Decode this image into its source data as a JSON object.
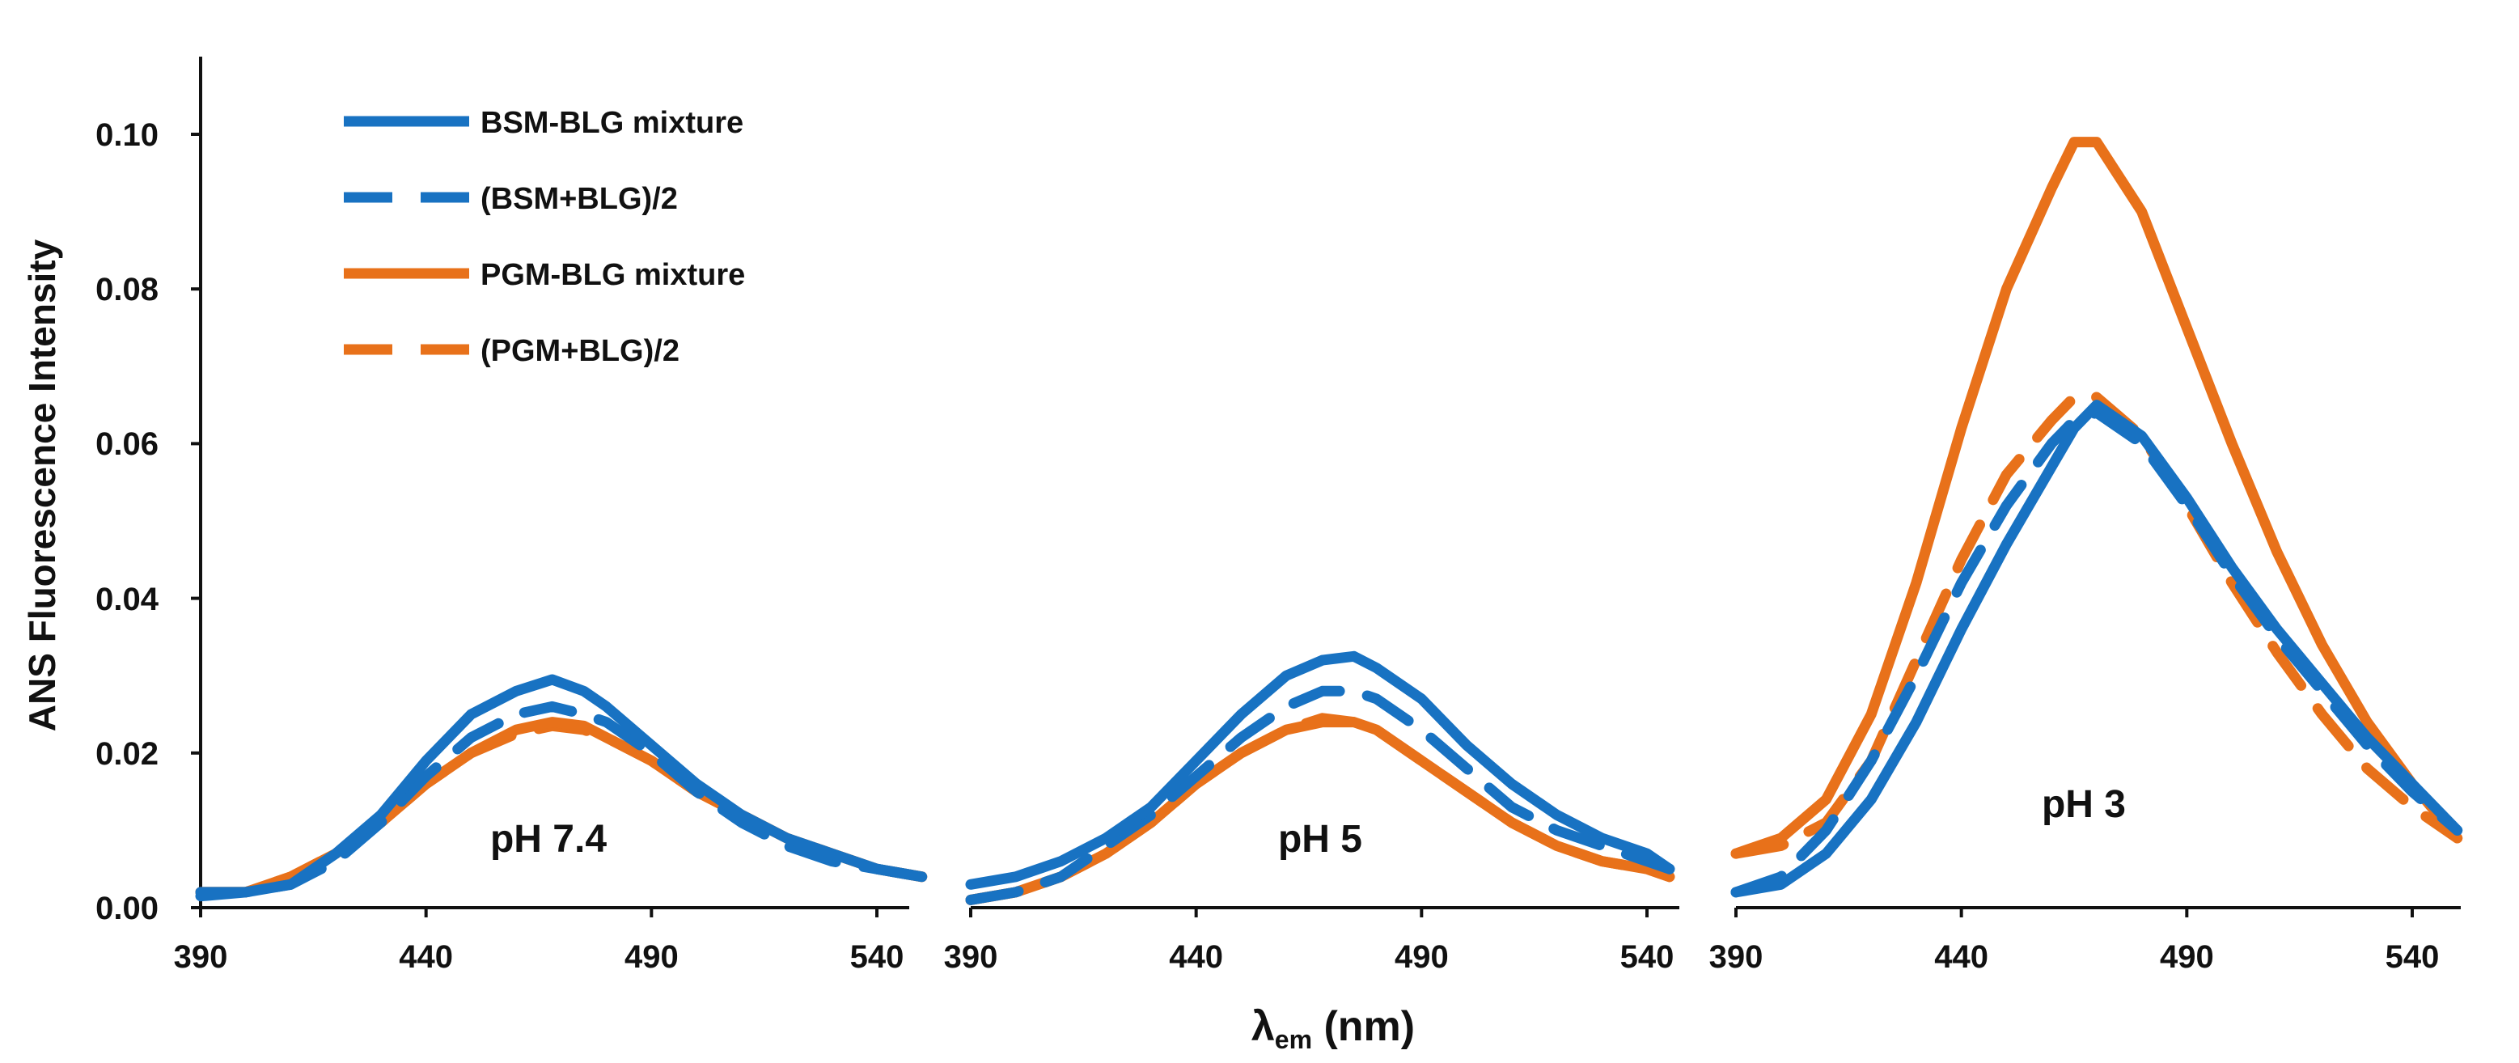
{
  "chart_data": {
    "type": "line",
    "ylabel": "ANS Fluorescence Intensity",
    "xlabel": {
      "main": "λ",
      "sub": "em",
      "unit": " (nm)"
    },
    "ylim": [
      0,
      0.11
    ],
    "yticks": [
      "0.00",
      "0.02",
      "0.04",
      "0.06",
      "0.08",
      "0.10"
    ],
    "ytick_values": [
      0,
      0.02,
      0.04,
      0.06,
      0.08,
      0.1
    ],
    "xlim": [
      390,
      550
    ],
    "xticks": [
      "390",
      "440",
      "490",
      "540"
    ],
    "xtick_values": [
      390,
      440,
      490,
      540
    ],
    "legend": [
      {
        "label": "BSM-BLG mixture",
        "color": "#1872C2",
        "dashed": false
      },
      {
        "label": "(BSM+BLG)/2",
        "color": "#1872C2",
        "dashed": true
      },
      {
        "label": "PGM-BLG mixture",
        "color": "#E8711A",
        "dashed": false
      },
      {
        "label": "(PGM+BLG)/2",
        "color": "#E8711A",
        "dashed": true
      }
    ],
    "panels": [
      {
        "label": "pH 7.4",
        "x": [
          390,
          400,
          410,
          420,
          430,
          440,
          450,
          460,
          468,
          475,
          480,
          490,
          500,
          510,
          520,
          530,
          540,
          550
        ],
        "series": [
          {
            "name": "BSM-BLG mixture",
            "values": [
              0.002,
              0.002,
              0.003,
              0.007,
              0.012,
              0.019,
              0.025,
              0.028,
              0.0295,
              0.028,
              0.026,
              0.021,
              0.016,
              0.012,
              0.009,
              0.007,
              0.005,
              0.004
            ]
          },
          {
            "name": "(BSM+BLG)/2",
            "values": [
              0.0015,
              0.002,
              0.003,
              0.006,
              0.011,
              0.017,
              0.022,
              0.025,
              0.026,
              0.025,
              0.024,
              0.02,
              0.015,
              0.011,
              0.008,
              0.006,
              0.005,
              0.004
            ]
          },
          {
            "name": "PGM-BLG mixture",
            "values": [
              0.002,
              0.002,
              0.004,
              0.007,
              0.011,
              0.016,
              0.02,
              0.023,
              0.024,
              0.0235,
              0.022,
              0.019,
              0.015,
              0.012,
              0.009,
              0.007,
              0.005,
              0.004
            ]
          },
          {
            "name": "(PGM+BLG)/2",
            "values": [
              0.002,
              0.002,
              0.004,
              0.007,
              0.011,
              0.016,
              0.02,
              0.0225,
              0.0235,
              0.023,
              0.022,
              0.019,
              0.015,
              0.012,
              0.009,
              0.007,
              0.005,
              0.004
            ]
          }
        ]
      },
      {
        "label": "pH 5",
        "x": [
          390,
          400,
          410,
          420,
          430,
          440,
          450,
          460,
          468,
          475,
          480,
          490,
          500,
          510,
          520,
          530,
          540,
          545
        ],
        "series": [
          {
            "name": "BSM-BLG mixture",
            "values": [
              0.003,
              0.004,
              0.006,
              0.009,
              0.013,
              0.019,
              0.025,
              0.03,
              0.032,
              0.0325,
              0.031,
              0.027,
              0.021,
              0.016,
              0.012,
              0.009,
              0.007,
              0.005
            ]
          },
          {
            "name": "(BSM+BLG)/2",
            "values": [
              0.001,
              0.002,
              0.004,
              0.008,
              0.012,
              0.017,
              0.022,
              0.026,
              0.028,
              0.028,
              0.027,
              0.023,
              0.018,
              0.013,
              0.01,
              0.008,
              0.006,
              0.005
            ]
          },
          {
            "name": "PGM-BLG mixture",
            "values": [
              0.001,
              0.002,
              0.004,
              0.007,
              0.011,
              0.016,
              0.02,
              0.023,
              0.024,
              0.024,
              0.023,
              0.019,
              0.015,
              0.011,
              0.008,
              0.006,
              0.005,
              0.004
            ]
          },
          {
            "name": "(PGM+BLG)/2",
            "values": [
              0.001,
              0.002,
              0.004,
              0.007,
              0.011,
              0.016,
              0.02,
              0.023,
              0.0245,
              0.024,
              0.023,
              0.019,
              0.015,
              0.011,
              0.008,
              0.006,
              0.005,
              0.004
            ]
          }
        ]
      },
      {
        "label": "pH 3",
        "x": [
          390,
          400,
          410,
          420,
          430,
          440,
          450,
          460,
          465,
          470,
          480,
          490,
          500,
          510,
          520,
          530,
          540,
          550
        ],
        "series": [
          {
            "name": "BSM-BLG mixture",
            "values": [
              0.002,
              0.003,
              0.007,
              0.014,
              0.024,
              0.036,
              0.047,
              0.057,
              0.062,
              0.065,
              0.061,
              0.053,
              0.044,
              0.036,
              0.029,
              0.022,
              0.016,
              0.01
            ]
          },
          {
            "name": "(BSM+BLG)/2",
            "values": [
              0.002,
              0.004,
              0.01,
              0.019,
              0.03,
              0.042,
              0.052,
              0.06,
              0.063,
              0.064,
              0.06,
              0.052,
              0.043,
              0.035,
              0.028,
              0.021,
              0.015,
              0.01
            ]
          },
          {
            "name": "PGM-BLG mixture",
            "values": [
              0.007,
              0.009,
              0.014,
              0.025,
              0.042,
              0.062,
              0.08,
              0.093,
              0.099,
              0.099,
              0.09,
              0.075,
              0.06,
              0.046,
              0.034,
              0.024,
              0.016,
              0.009
            ]
          },
          {
            "name": "(PGM+BLG)/2",
            "values": [
              0.007,
              0.008,
              0.011,
              0.019,
              0.032,
              0.045,
              0.056,
              0.063,
              0.066,
              0.066,
              0.061,
              0.052,
              0.042,
              0.033,
              0.025,
              0.018,
              0.013,
              0.009
            ]
          }
        ]
      }
    ]
  }
}
